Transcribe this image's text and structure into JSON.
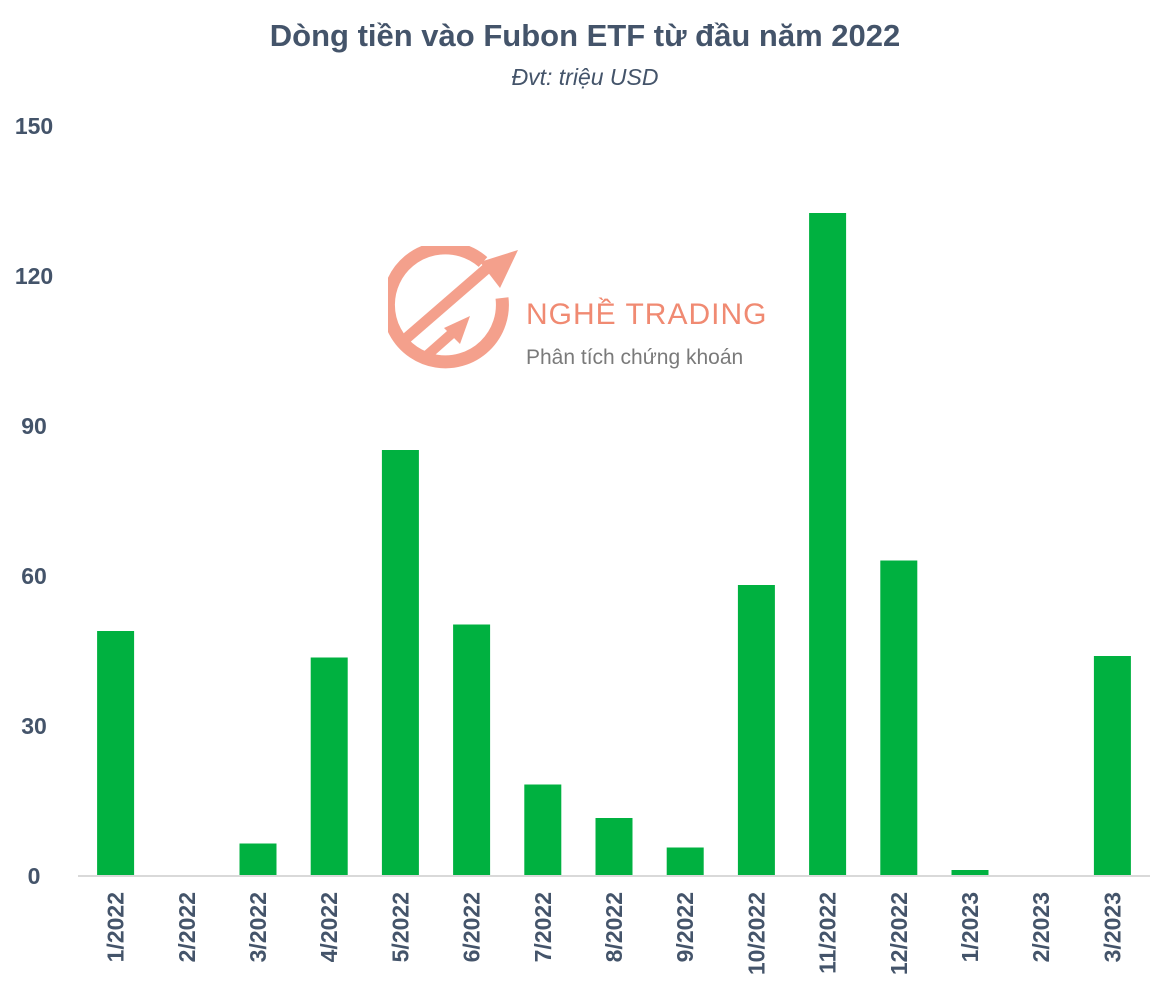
{
  "chart_data": {
    "type": "bar",
    "title": "Dòng tiền vào Fubon ETF từ đầu năm 2022",
    "subtitle": "Đvt: triệu USD",
    "xlabel": "",
    "ylabel": "",
    "categories": [
      "1/2022",
      "2/2022",
      "3/2022",
      "4/2022",
      "5/2022",
      "6/2022",
      "7/2022",
      "8/2022",
      "9/2022",
      "10/2022",
      "11/2022",
      "12/2022",
      "1/2023",
      "2/2023",
      "3/2023"
    ],
    "values": [
      49,
      0,
      6.5,
      43.7,
      85.2,
      50.3,
      18.3,
      11.6,
      5.7,
      58.2,
      132.6,
      63.1,
      1.2,
      0,
      44
    ],
    "ylim": [
      0,
      150
    ],
    "yticks": [
      0,
      30,
      60,
      90,
      120,
      150
    ],
    "grid": false,
    "legend": "none",
    "bar_color": "#00b140",
    "axis_color": "#d9d9d9",
    "text_color": "#44546a"
  },
  "watermark": {
    "brand": "NGHỀ TRADING",
    "tagline": "Phân tích chứng khoán",
    "color": "#f08a72"
  }
}
